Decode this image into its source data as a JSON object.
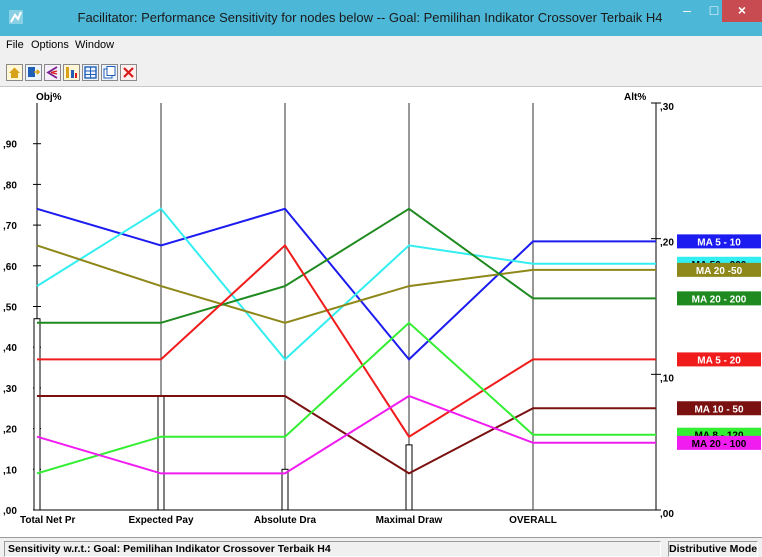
{
  "window": {
    "title": "Facilitator: Performance Sensitivity for nodes below -- Goal: Pemilihan Indikator Crossover Terbaik H4",
    "minimize": "–",
    "maximize": "□",
    "close": "×"
  },
  "menu": {
    "items": [
      {
        "label": "File",
        "key": "file"
      },
      {
        "label": "Options",
        "key": "options"
      },
      {
        "label": "Window",
        "key": "window"
      }
    ]
  },
  "toolbar": {
    "buttons": [
      {
        "icon": "home-icon",
        "color": "#d9a21b"
      },
      {
        "icon": "export-icon",
        "color": "#1f5fb5"
      },
      {
        "icon": "compare-icon",
        "color": "#7a1f8a"
      },
      {
        "icon": "sort-icon",
        "color": "#d9a21b"
      },
      {
        "icon": "table-icon",
        "color": "#1f5fb5"
      },
      {
        "icon": "copy-icon",
        "color": "#1f5fb5"
      },
      {
        "icon": "close-red-icon",
        "color": "#d91b1b"
      }
    ]
  },
  "chart_data": {
    "type": "line",
    "left_axis_title": "Obj%",
    "right_axis_title": "Alt%",
    "left_ticks": [
      {
        "value": 0.0,
        "label": ",00"
      },
      {
        "value": 0.1,
        "label": ",10"
      },
      {
        "value": 0.2,
        "label": ",20"
      },
      {
        "value": 0.3,
        "label": ",30"
      },
      {
        "value": 0.4,
        "label": ",40"
      },
      {
        "value": 0.5,
        "label": ",50"
      },
      {
        "value": 0.6,
        "label": ",60"
      },
      {
        "value": 0.7,
        "label": ",70"
      },
      {
        "value": 0.8,
        "label": ",80"
      },
      {
        "value": 0.9,
        "label": ",90"
      }
    ],
    "left_ylim": [
      0,
      1.0
    ],
    "right_ticks": [
      {
        "value": 0.0,
        "label": ",00"
      },
      {
        "value": 0.1,
        "label": ",10"
      },
      {
        "value": 0.2,
        "label": ",20"
      },
      {
        "value": 0.3,
        "label": ",30"
      }
    ],
    "right_ylim": [
      0,
      0.3
    ],
    "categories": [
      "Total Net Pr",
      "Expected Pay",
      "Absolute Dra",
      "Maximal Draw",
      "OVERALL"
    ],
    "objective_weights": [
      0.47,
      0.28,
      0.1,
      0.16
    ],
    "grid": false,
    "series": [
      {
        "name": "MA 5 - 10",
        "color": "#1c1cf0",
        "label_text_color": "#ffffff",
        "values": [
          0.74,
          0.65,
          0.74,
          0.37,
          0.66
        ]
      },
      {
        "name": "MA 50 - 200",
        "color": "#33eef0",
        "label_text_color": "#000000",
        "values": [
          0.55,
          0.74,
          0.37,
          0.65,
          0.605
        ]
      },
      {
        "name": "MA 20 -50",
        "color": "#8e8719",
        "label_text_color": "#ffffff",
        "values": [
          0.65,
          0.55,
          0.46,
          0.55,
          0.59
        ]
      },
      {
        "name": "MA 20 - 200",
        "color": "#1f8a1f",
        "label_text_color": "#ffffff",
        "values": [
          0.46,
          0.46,
          0.55,
          0.74,
          0.52
        ]
      },
      {
        "name": "MA 5 - 20",
        "color": "#f01c1c",
        "label_text_color": "#ffffff",
        "values": [
          0.37,
          0.37,
          0.65,
          0.18,
          0.37
        ]
      },
      {
        "name": "MA 10 - 50",
        "color": "#7a1010",
        "label_text_color": "#ffffff",
        "values": [
          0.28,
          0.28,
          0.28,
          0.09,
          0.25
        ]
      },
      {
        "name": "MA 8 - 120",
        "color": "#33ee33",
        "label_text_color": "#000000",
        "values": [
          0.09,
          0.18,
          0.18,
          0.46,
          0.185
        ]
      },
      {
        "name": "MA 20 - 100",
        "color": "#f01cf0",
        "label_text_color": "#000000",
        "values": [
          0.18,
          0.09,
          0.09,
          0.28,
          0.165
        ]
      }
    ]
  },
  "status": {
    "left": "Sensitivity w.r.t.: Goal: Pemilihan Indikator Crossover Terbaik H4",
    "right": "Distributive Mode"
  }
}
